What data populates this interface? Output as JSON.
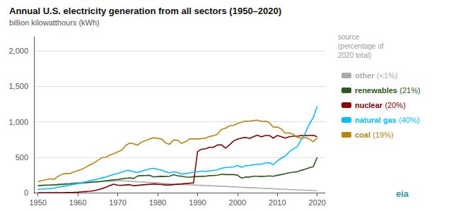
{
  "chart_data": {
    "type": "line",
    "title": "Annual U.S. electricity generation from all sectors (1950–2020)",
    "subtitle": "billion kilowatthours (kWh)",
    "annotations": [
      "source\n(percentage of\n2020 total)",
      "eia"
    ],
    "x": [
      1950,
      1951,
      1952,
      1953,
      1954,
      1955,
      1956,
      1957,
      1958,
      1959,
      1960,
      1961,
      1962,
      1963,
      1964,
      1965,
      1966,
      1967,
      1968,
      1969,
      1970,
      1971,
      1972,
      1973,
      1974,
      1975,
      1976,
      1977,
      1978,
      1979,
      1980,
      1981,
      1982,
      1983,
      1984,
      1985,
      1986,
      1987,
      1988,
      1989,
      1990,
      1991,
      1992,
      1993,
      1994,
      1995,
      1996,
      1997,
      1998,
      1999,
      2000,
      2001,
      2002,
      2003,
      2004,
      2005,
      2006,
      2007,
      2008,
      2009,
      2010,
      2011,
      2012,
      2013,
      2014,
      2015,
      2016,
      2017,
      2018,
      2019,
      2020
    ],
    "series": [
      {
        "name": "other",
        "legend_label": "(<1%)",
        "color": "#aaaaaa",
        "values": [
          100,
          103,
          107,
          110,
          112,
          118,
          122,
          128,
          132,
          138,
          142,
          145,
          148,
          150,
          152,
          155,
          158,
          160,
          163,
          165,
          168,
          168,
          165,
          163,
          160,
          155,
          152,
          148,
          145,
          142,
          138,
          133,
          128,
          123,
          120,
          118,
          115,
          112,
          110,
          108,
          105,
          103,
          100,
          98,
          95,
          93,
          90,
          88,
          85,
          83,
          80,
          75,
          73,
          70,
          68,
          65,
          62,
          60,
          58,
          55,
          53,
          50,
          48,
          45,
          43,
          40,
          38,
          35,
          33,
          30,
          28
        ]
      },
      {
        "name": "renewables",
        "legend_label": "(21%)",
        "color": "#2d5a1b",
        "values": [
          100,
          103,
          105,
          107,
          110,
          113,
          117,
          120,
          122,
          126,
          132,
          135,
          140,
          145,
          150,
          153,
          160,
          168,
          175,
          180,
          187,
          195,
          202,
          208,
          200,
          235,
          240,
          242,
          245,
          222,
          228,
          230,
          228,
          232,
          253,
          238,
          232,
          222,
          217,
          225,
          228,
          230,
          232,
          240,
          243,
          247,
          258,
          255,
          255,
          255,
          248,
          205,
          220,
          220,
          232,
          232,
          228,
          232,
          236,
          232,
          245,
          255,
          268,
          282,
          288,
          295,
          315,
          330,
          350,
          365,
          500
        ]
      },
      {
        "name": "nuclear",
        "legend_label": "(20%)",
        "color": "#8b0000",
        "values": [
          0,
          0,
          0,
          0,
          0,
          0,
          0,
          2,
          3,
          5,
          8,
          12,
          16,
          20,
          28,
          40,
          56,
          75,
          99,
          120,
          105,
          103,
          108,
          113,
          98,
          103,
          108,
          113,
          118,
          123,
          118,
          115,
          108,
          108,
          113,
          118,
          123,
          128,
          133,
          138,
          578,
          613,
          620,
          640,
          640,
          673,
          675,
          628,
          673,
          728,
          754,
          769,
          780,
          764,
          788,
          811,
          787,
          806,
          806,
          769,
          807,
          790,
          769,
          789,
          797,
          797,
          805,
          805,
          807,
          809,
          790
        ]
      },
      {
        "name": "natural gas",
        "legend_label": "(40%)",
        "color": "#00bfff",
        "values": [
          47,
          50,
          54,
          58,
          62,
          78,
          88,
          93,
          108,
          118,
          128,
          138,
          152,
          168,
          178,
          192,
          208,
          218,
          238,
          258,
          268,
          288,
          308,
          313,
          293,
          283,
          303,
          318,
          333,
          343,
          328,
          318,
          293,
          278,
          293,
          283,
          263,
          268,
          278,
          288,
          293,
          303,
          298,
          308,
          313,
          323,
          343,
          353,
          358,
          363,
          383,
          358,
          378,
          383,
          393,
          398,
          403,
          418,
          423,
          393,
          448,
          488,
          518,
          578,
          618,
          648,
          748,
          838,
          968,
          1058,
          1220
        ]
      },
      {
        "name": "coal",
        "legend_label": "(19%)",
        "color": "#b8860b",
        "values": [
          155,
          170,
          182,
          195,
          187,
          228,
          258,
          272,
          268,
          292,
          310,
          328,
          360,
          390,
          418,
          455,
          494,
          498,
          530,
          550,
          575,
          600,
          665,
          700,
          690,
          670,
          715,
          735,
          760,
          775,
          765,
          758,
          703,
          683,
          743,
          738,
          697,
          718,
          758,
          758,
          758,
          763,
          768,
          793,
          803,
          823,
          893,
          908,
          943,
          948,
          975,
          993,
          1010,
          1008,
          1018,
          1022,
          1005,
          1008,
          988,
          923,
          925,
          898,
          838,
          843,
          823,
          783,
          763,
          778,
          756,
          718,
          774
        ]
      }
    ],
    "xlim": [
      1949,
      2022
    ],
    "xticks": [
      1950,
      1960,
      1970,
      1980,
      1990,
      2000,
      2010,
      2020
    ],
    "ylim": [
      0,
      2200
    ],
    "yticks": [
      0,
      500,
      {
        "value": 1000,
        "label": "1,000"
      },
      {
        "value": 1500,
        "label": "1,500"
      },
      {
        "value": 2000,
        "label": "2,000"
      }
    ],
    "grid": true,
    "legend": "right"
  }
}
